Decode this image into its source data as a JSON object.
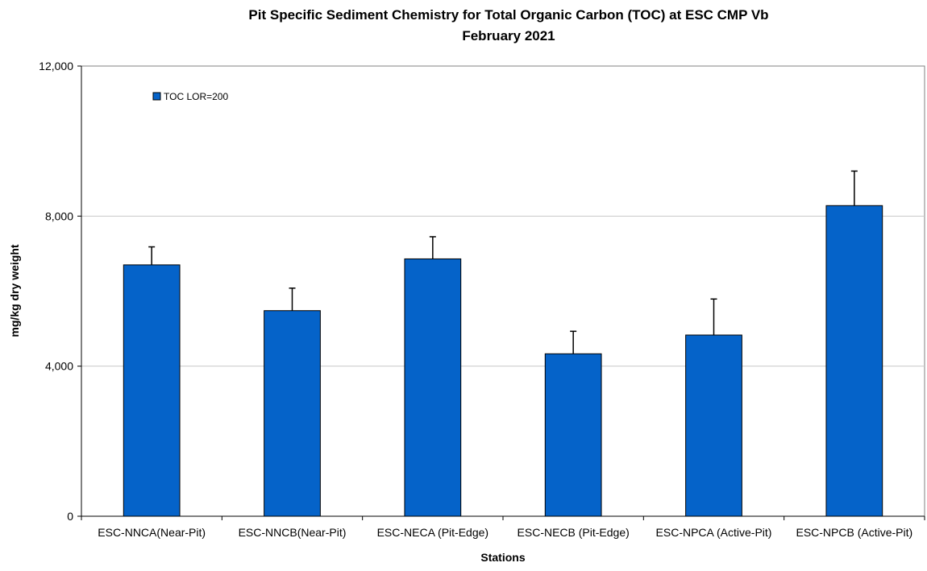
{
  "chart_data": {
    "type": "bar",
    "title": "Pit Specific Sediment Chemistry for Total Organic Carbon (TOC) at  ESC CMP Vb",
    "subtitle": "February 2021",
    "xlabel": "Stations",
    "ylabel": "mg/kg dry weight",
    "ylim": [
      0,
      12000
    ],
    "yticks": [
      0,
      4000,
      8000,
      12000
    ],
    "ytick_labels": [
      "0",
      "4,000",
      "8,000",
      "12,000"
    ],
    "grid": true,
    "legend_position": "top-left",
    "categories": [
      "ESC-NNCA(Near-Pit)",
      "ESC-NNCB(Near-Pit)",
      "ESC-NECA (Pit-Edge)",
      "ESC-NECB (Pit-Edge)",
      "ESC-NPCA (Active-Pit)",
      "ESC-NPCB (Active-Pit)"
    ],
    "series": [
      {
        "name": "TOC LOR=200",
        "color": "#0563C9",
        "values": [
          6700,
          5480,
          6860,
          4330,
          4830,
          8280
        ],
        "error_upper": [
          480,
          600,
          590,
          600,
          960,
          920
        ]
      }
    ]
  }
}
